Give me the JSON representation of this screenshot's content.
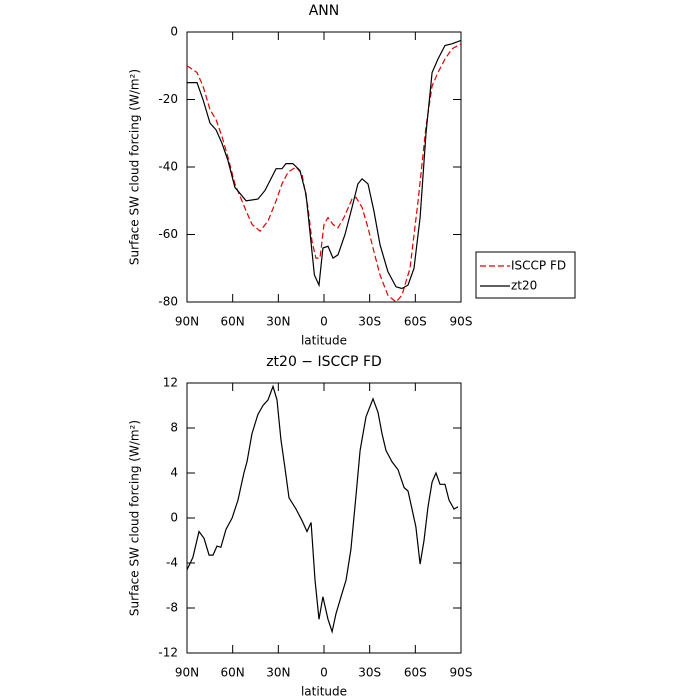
{
  "chart_data": [
    {
      "type": "line",
      "title": "ANN",
      "xlabel": "latitude",
      "ylabel": "Surface SW cloud forcing (W/m²)",
      "xlim": [
        90,
        -90
      ],
      "xticks": [
        {
          "value": 90,
          "label": "90N"
        },
        {
          "value": 60,
          "label": "60N"
        },
        {
          "value": 30,
          "label": "30N"
        },
        0,
        {
          "value": -30,
          "label": "30S"
        },
        {
          "value": -60,
          "label": "60S"
        },
        {
          "value": -90,
          "label": "90S"
        }
      ],
      "ylim": [
        -80,
        0
      ],
      "yticks": [
        -80,
        -60,
        -40,
        -20,
        0
      ],
      "legend": "right",
      "series": [
        {
          "name": "ISCCP FD",
          "color": "#e00000",
          "dash": "dashed",
          "x": [
            90,
            83.4,
            79.5,
            74.9,
            70.9,
            67,
            63.1,
            58.5,
            51.2,
            47.3,
            42,
            36.8,
            31.5,
            27.6,
            23.6,
            18.4,
            14.5,
            10.5,
            7.9,
            5.3,
            2.6,
            0,
            -2.6,
            -5.9,
            -9.2,
            -13.1,
            -18.4,
            -21,
            -25,
            -28.9,
            -32.8,
            -36.8,
            -42,
            -47.3,
            -51.2,
            -56.5,
            -61.8,
            -67,
            -71,
            -74.9,
            -79.5,
            -84.1,
            -90
          ],
          "values": [
            -10,
            -12,
            -16,
            -23,
            -26,
            -31,
            -37,
            -45,
            -53,
            -57,
            -59,
            -56,
            -50,
            -45,
            -41.5,
            -40,
            -42,
            -52,
            -62,
            -67,
            -67,
            -57,
            -55,
            -57,
            -58,
            -55,
            -49.5,
            -49,
            -52,
            -58,
            -65,
            -72,
            -78,
            -80,
            -78,
            -70,
            -50,
            -28,
            -16,
            -12,
            -8,
            -5,
            -3.5
          ]
        },
        {
          "name": "zt20",
          "color": "#000000",
          "dash": "solid",
          "x": [
            90,
            83.4,
            79.5,
            74.9,
            70.9,
            67,
            63.1,
            58.5,
            51.2,
            43.4,
            38.8,
            31.5,
            27.6,
            25,
            20.4,
            15.8,
            11.8,
            6.3,
            3.3,
            0.7,
            -2.6,
            -5.9,
            -9.2,
            -13.8,
            -18.4,
            -22.3,
            -25,
            -28.9,
            -32.8,
            -36.8,
            -42,
            -47.3,
            -51.2,
            -55.2,
            -59.1,
            -63.1,
            -67,
            -71,
            -74.9,
            -79.5,
            -84.1,
            -90
          ],
          "values": [
            -15,
            -15,
            -20,
            -27,
            -29,
            -33,
            -38,
            -46,
            -50,
            -49.5,
            -47,
            -40.5,
            -40.5,
            -39,
            -39,
            -41,
            -48,
            -72,
            -75,
            -64,
            -63.5,
            -67,
            -66,
            -60,
            -52,
            -45,
            -43.5,
            -45,
            -53,
            -63,
            -71,
            -75.5,
            -76,
            -75,
            -70,
            -55,
            -30,
            -12,
            -8,
            -4,
            -3.5,
            -2.5
          ]
        }
      ]
    },
    {
      "type": "line",
      "title": "zt20 − ISCCP FD",
      "xlabel": "latitude",
      "ylabel": "Surface SW cloud forcing (W/m²)",
      "xlim": [
        90,
        -90
      ],
      "xticks": [
        {
          "value": 90,
          "label": "90N"
        },
        {
          "value": 60,
          "label": "60N"
        },
        {
          "value": 30,
          "label": "30N"
        },
        0,
        {
          "value": -30,
          "label": "30S"
        },
        {
          "value": -60,
          "label": "60S"
        },
        {
          "value": -90,
          "label": "90S"
        }
      ],
      "ylim": [
        -12,
        12
      ],
      "yticks": [
        -12,
        -8,
        -4,
        0,
        4,
        8,
        12
      ],
      "series": [
        {
          "color": "#000000",
          "dash": "solid",
          "x": [
            90,
            86.1,
            82.1,
            78.8,
            75.5,
            72.9,
            70.3,
            67.7,
            64.4,
            60.4,
            56.5,
            52.6,
            50.6,
            47.3,
            43.4,
            40.1,
            36.8,
            33.5,
            30.9,
            28.3,
            25.7,
            23,
            18.4,
            14.5,
            11.2,
            8.5,
            5.9,
            3.3,
            0.7,
            -2.6,
            -5.3,
            -7.9,
            -11.2,
            -14.5,
            -17.7,
            -21,
            -23.7,
            -27.6,
            -32.2,
            -35.5,
            -38.1,
            -40.7,
            -44.7,
            -48.6,
            -52.6,
            -55.2,
            -57.8,
            -60.4,
            -63.1,
            -65.7,
            -68.3,
            -71,
            -73.6,
            -76.2,
            -79.5,
            -82.1,
            -85.4,
            -88
          ],
          "values": [
            -4.6,
            -3.5,
            -1.2,
            -1.8,
            -3.3,
            -3.3,
            -2.5,
            -2.6,
            -1,
            0,
            1.6,
            4,
            5,
            7.5,
            9.2,
            10,
            10.5,
            11.7,
            10.5,
            7,
            4.5,
            1.8,
            0.8,
            -0.2,
            -1.2,
            -0.4,
            -5.5,
            -9,
            -7,
            -9,
            -10.1,
            -8.5,
            -7,
            -5.5,
            -2.8,
            2,
            6,
            9,
            10.6,
            9.4,
            7.5,
            6,
            5,
            4.3,
            2.7,
            2.4,
            0.8,
            -0.8,
            -4.1,
            -2,
            1,
            3.2,
            4,
            3,
            3,
            1.6,
            0.8,
            1
          ]
        }
      ]
    }
  ]
}
